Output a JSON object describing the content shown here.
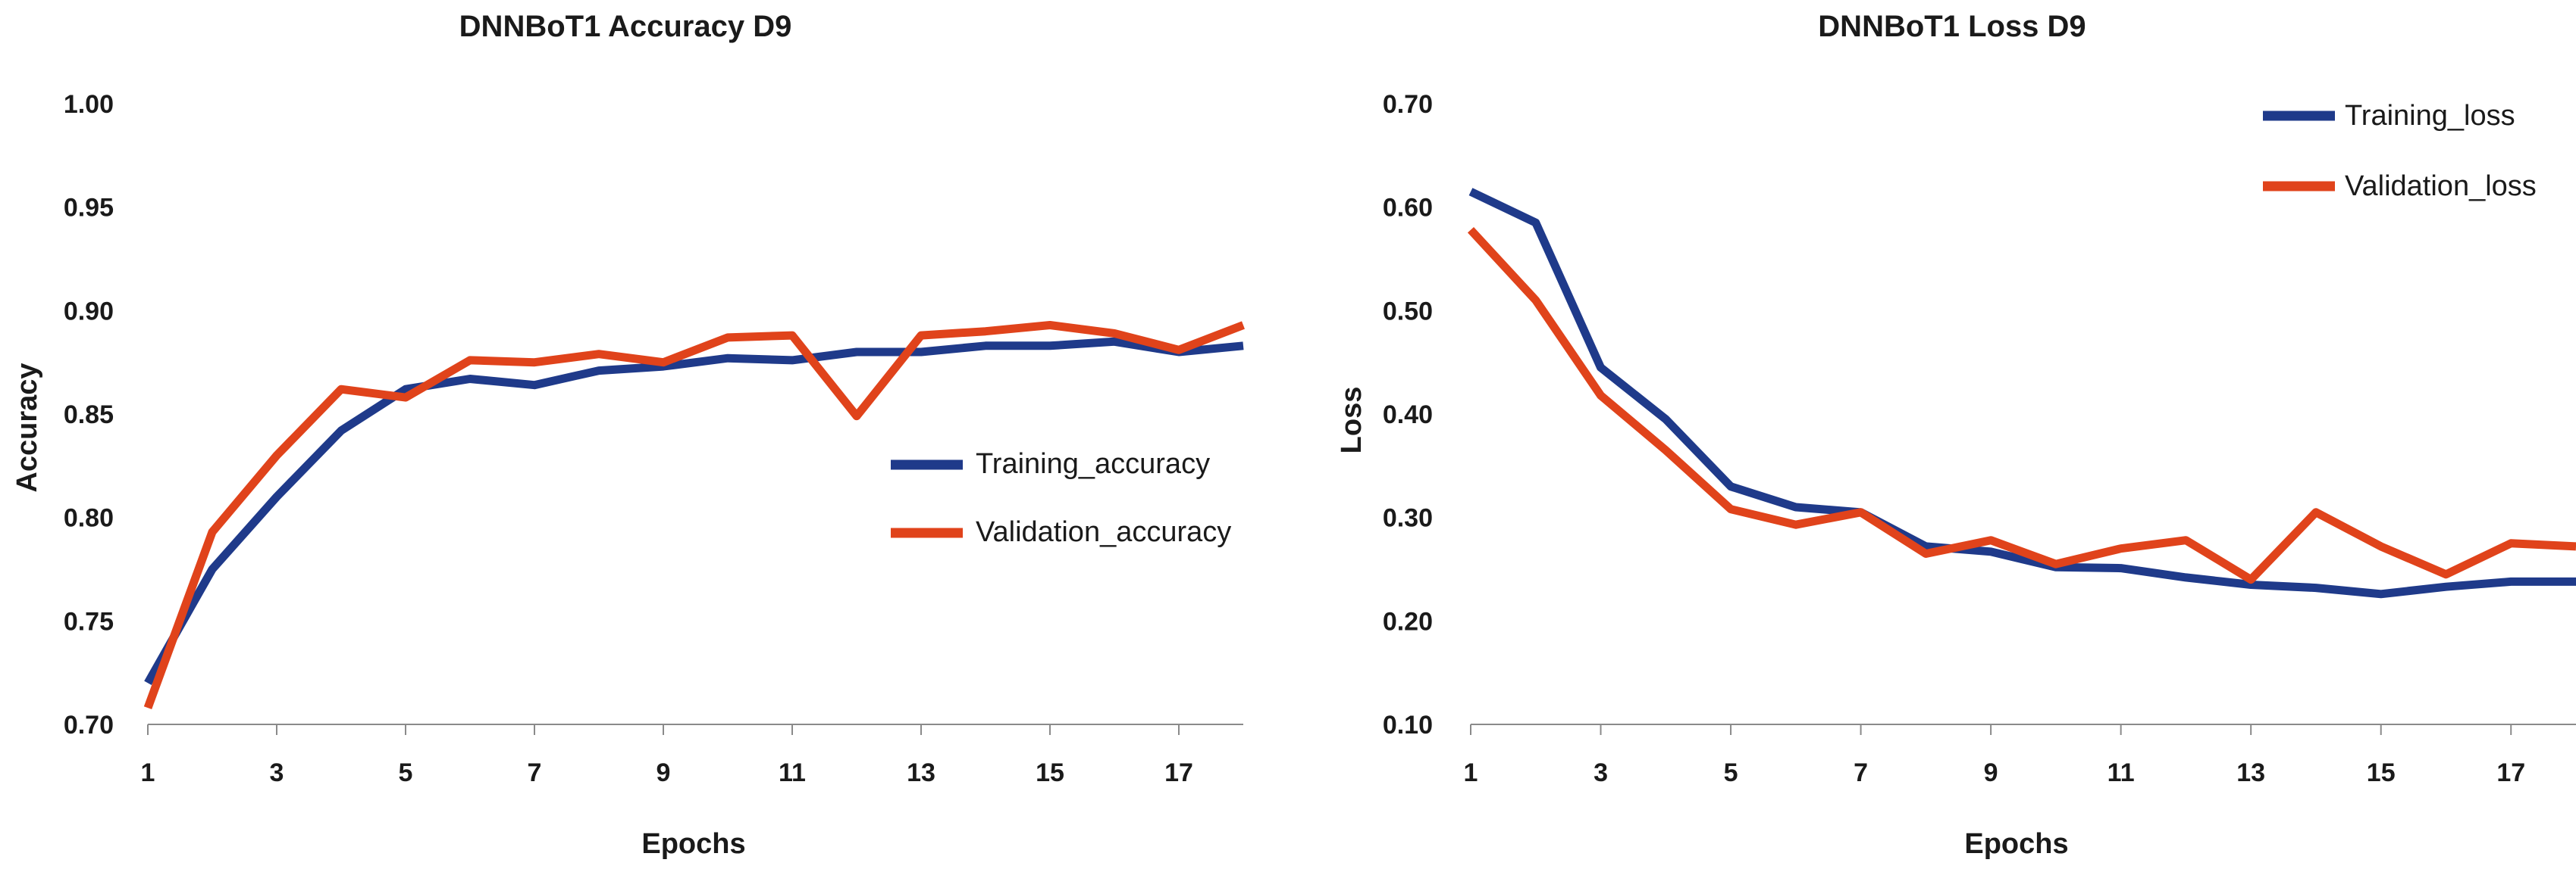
{
  "chart_data": [
    {
      "type": "line",
      "title": "DNNBoT1 Accuracy D9",
      "xlabel": "Epochs",
      "ylabel": "Accuracy",
      "xlim": [
        1,
        18
      ],
      "ylim": [
        0.7,
        1.0
      ],
      "x_ticks": [
        1,
        3,
        5,
        7,
        9,
        11,
        13,
        15,
        17
      ],
      "x_tick_labels": [
        "1",
        "3",
        "5",
        "7",
        "9",
        "11",
        "13",
        "15",
        "17"
      ],
      "y_ticks": [
        0.7,
        0.75,
        0.8,
        0.85,
        0.9,
        0.95,
        1.0
      ],
      "y_tick_labels": [
        "0.70",
        "0.75",
        "0.80",
        "0.85",
        "0.90",
        "0.95",
        "1.00"
      ],
      "legend_position": "center-right",
      "grid": false,
      "x": [
        1,
        2,
        3,
        4,
        5,
        6,
        7,
        8,
        9,
        10,
        11,
        12,
        13,
        14,
        15,
        16,
        17,
        18
      ],
      "series": [
        {
          "name": "Training_accuracy",
          "color": "#1f3a8a",
          "values": [
            0.72,
            0.775,
            0.81,
            0.842,
            0.862,
            0.867,
            0.864,
            0.871,
            0.873,
            0.877,
            0.876,
            0.88,
            0.88,
            0.883,
            0.883,
            0.885,
            0.88,
            0.883
          ]
        },
        {
          "name": "Validation_accuracy",
          "color": "#e0431b",
          "values": [
            0.708,
            0.793,
            0.83,
            0.862,
            0.858,
            0.876,
            0.875,
            0.879,
            0.875,
            0.887,
            0.888,
            0.849,
            0.888,
            0.89,
            0.893,
            0.889,
            0.881,
            0.893
          ]
        }
      ]
    },
    {
      "type": "line",
      "title": "DNNBoT1 Loss D9",
      "xlabel": "Epochs",
      "ylabel": "Loss",
      "xlim": [
        1,
        18
      ],
      "ylim": [
        0.1,
        0.7
      ],
      "x_ticks": [
        1,
        3,
        5,
        7,
        9,
        11,
        13,
        15,
        17
      ],
      "x_tick_labels": [
        "1",
        "3",
        "5",
        "7",
        "9",
        "11",
        "13",
        "15",
        "17"
      ],
      "y_ticks": [
        0.1,
        0.2,
        0.3,
        0.4,
        0.5,
        0.6,
        0.7
      ],
      "y_tick_labels": [
        "0.10",
        "0.20",
        "0.30",
        "0.40",
        "0.50",
        "0.60",
        "0.70"
      ],
      "legend_position": "top-right",
      "grid": false,
      "x": [
        1,
        2,
        3,
        4,
        5,
        6,
        7,
        8,
        9,
        10,
        11,
        12,
        13,
        14,
        15,
        16,
        17,
        18
      ],
      "series": [
        {
          "name": "Training_loss",
          "color": "#1f3a8a",
          "values": [
            0.615,
            0.585,
            0.445,
            0.395,
            0.33,
            0.31,
            0.305,
            0.272,
            0.267,
            0.252,
            0.251,
            0.242,
            0.235,
            0.232,
            0.226,
            0.233,
            0.238,
            0.238
          ]
        },
        {
          "name": "Validation_loss",
          "color": "#e0431b",
          "values": [
            0.578,
            0.51,
            0.418,
            0.365,
            0.308,
            0.293,
            0.305,
            0.265,
            0.278,
            0.255,
            0.27,
            0.278,
            0.24,
            0.305,
            0.272,
            0.245,
            0.275,
            0.272
          ]
        }
      ]
    }
  ]
}
